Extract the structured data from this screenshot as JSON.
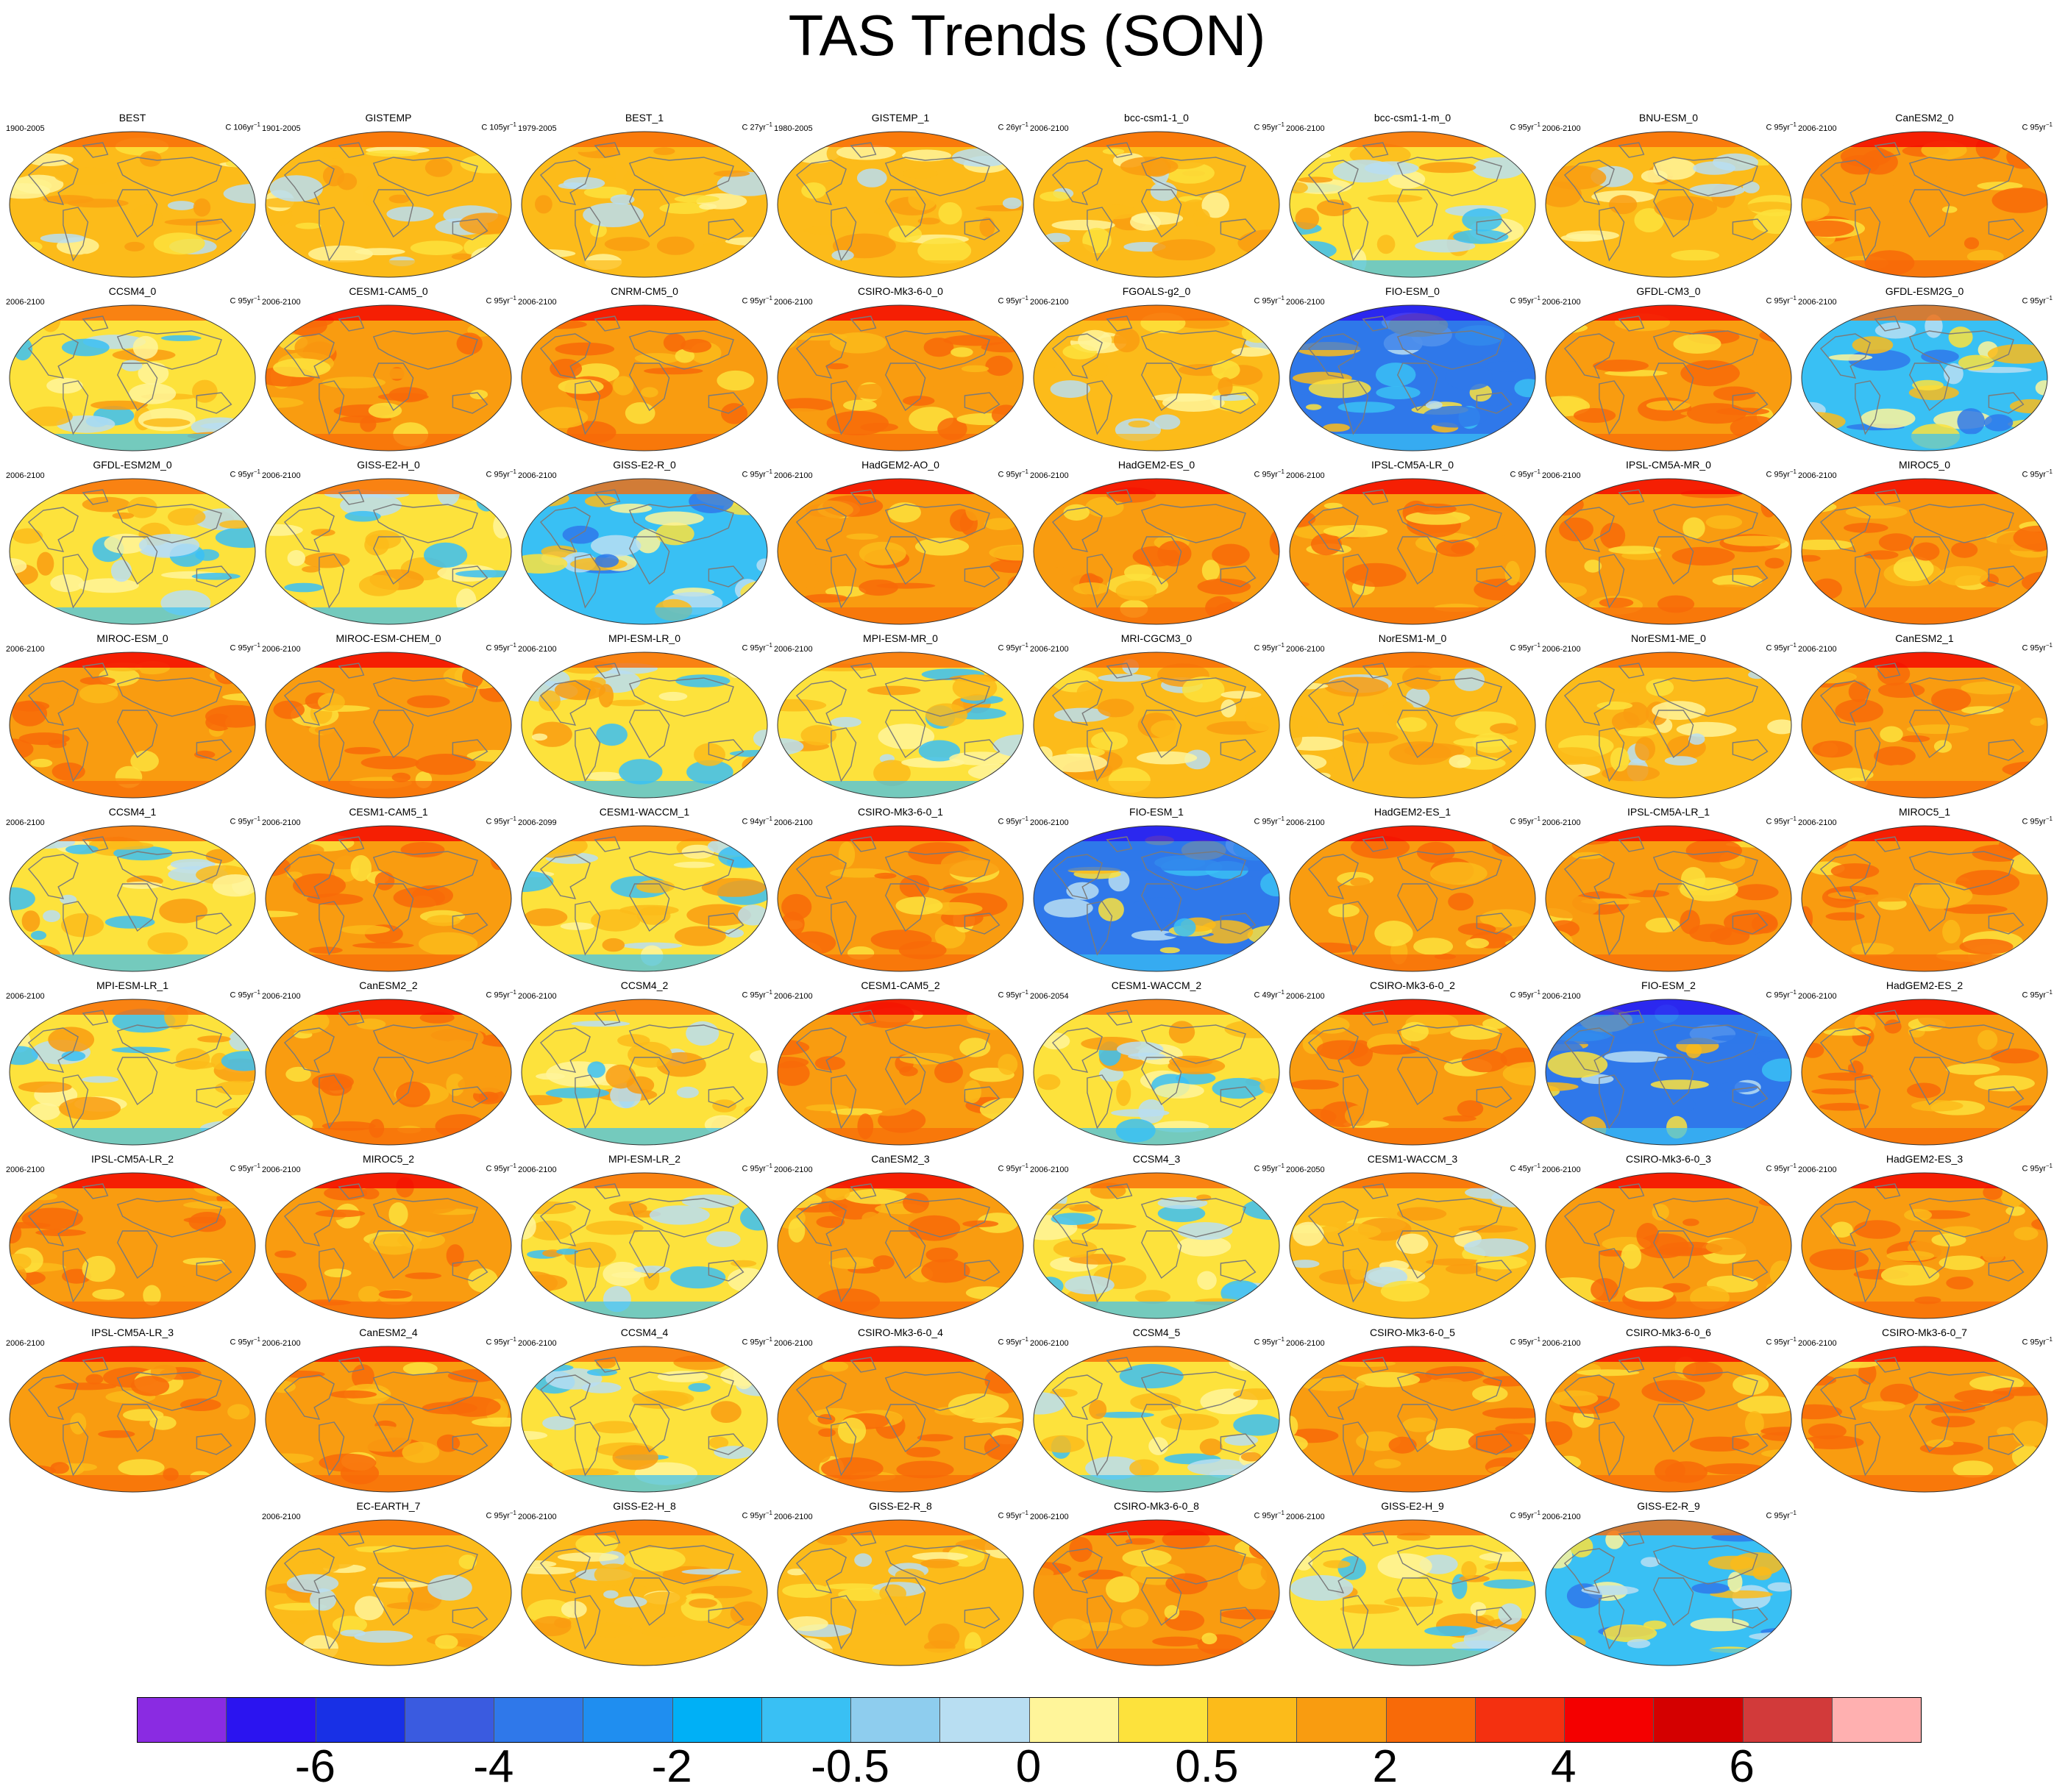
{
  "title": "TAS Trends (SON)",
  "colors": {
    "land_outline": "#7a7a7a",
    "map_border": "#333333",
    "base": "#f7a21a",
    "scale": [
      "#8a2be2",
      "#2b14f0",
      "#1830e6",
      "#3a5be0",
      "#2f78ea",
      "#1f8ef0",
      "#00b0f6",
      "#39c0f4",
      "#8ecdee",
      "#b8def2",
      "#fff59a",
      "#fde23c",
      "#fcbb1a",
      "#f99c10",
      "#f86a08",
      "#f43010",
      "#f40000",
      "#d40000",
      "#d23a3a",
      "#ffb0b0"
    ]
  },
  "colorbar": {
    "labels": [
      "-6",
      "-4",
      "-2",
      "-0.5",
      "0",
      "0.5",
      "2",
      "4",
      "6"
    ]
  },
  "panels": [
    {
      "name": "BEST",
      "period": "1900-2005",
      "unit": "C 106yr",
      "bias": 1
    },
    {
      "name": "GISTEMP",
      "period": "1901-2005",
      "unit": "C 105yr",
      "bias": 1
    },
    {
      "name": "BEST_1",
      "period": "1979-2005",
      "unit": "C 27yr",
      "bias": 1
    },
    {
      "name": "GISTEMP_1",
      "period": "1980-2005",
      "unit": "C 26yr",
      "bias": 1
    },
    {
      "name": "bcc-csm1-1_0",
      "period": "2006-2100",
      "unit": "C 95yr",
      "bias": 1
    },
    {
      "name": "bcc-csm1-1-m_0",
      "period": "2006-2100",
      "unit": "C 95yr",
      "bias": 0
    },
    {
      "name": "BNU-ESM_0",
      "period": "2006-2100",
      "unit": "C 95yr",
      "bias": 1
    },
    {
      "name": "CanESM2_0",
      "period": "2006-2100",
      "unit": "C 95yr",
      "bias": 2
    },
    {
      "name": "CCSM4_0",
      "period": "2006-2100",
      "unit": "C 95yr",
      "bias": 0
    },
    {
      "name": "CESM1-CAM5_0",
      "period": "2006-2100",
      "unit": "C 95yr",
      "bias": 2
    },
    {
      "name": "CNRM-CM5_0",
      "period": "2006-2100",
      "unit": "C 95yr",
      "bias": 2
    },
    {
      "name": "CSIRO-Mk3-6-0_0",
      "period": "2006-2100",
      "unit": "C 95yr",
      "bias": 2
    },
    {
      "name": "FGOALS-g2_0",
      "period": "2006-2100",
      "unit": "C 95yr",
      "bias": 1
    },
    {
      "name": "FIO-ESM_0",
      "period": "2006-2100",
      "unit": "C 95yr",
      "bias": -2
    },
    {
      "name": "GFDL-CM3_0",
      "period": "2006-2100",
      "unit": "C 95yr",
      "bias": 2
    },
    {
      "name": "GFDL-ESM2G_0",
      "period": "2006-2100",
      "unit": "C 95yr",
      "bias": -1
    },
    {
      "name": "GFDL-ESM2M_0",
      "period": "2006-2100",
      "unit": "C 95yr",
      "bias": 0
    },
    {
      "name": "GISS-E2-H_0",
      "period": "2006-2100",
      "unit": "C 95yr",
      "bias": 0
    },
    {
      "name": "GISS-E2-R_0",
      "period": "2006-2100",
      "unit": "C 95yr",
      "bias": -1
    },
    {
      "name": "HadGEM2-AO_0",
      "period": "2006-2100",
      "unit": "C 95yr",
      "bias": 2
    },
    {
      "name": "HadGEM2-ES_0",
      "period": "2006-2100",
      "unit": "C 95yr",
      "bias": 2
    },
    {
      "name": "IPSL-CM5A-LR_0",
      "period": "2006-2100",
      "unit": "C 95yr",
      "bias": 2
    },
    {
      "name": "IPSL-CM5A-MR_0",
      "period": "2006-2100",
      "unit": "C 95yr",
      "bias": 2
    },
    {
      "name": "MIROC5_0",
      "period": "2006-2100",
      "unit": "C 95yr",
      "bias": 2
    },
    {
      "name": "MIROC-ESM_0",
      "period": "2006-2100",
      "unit": "C 95yr",
      "bias": 2
    },
    {
      "name": "MIROC-ESM-CHEM_0",
      "period": "2006-2100",
      "unit": "C 95yr",
      "bias": 2
    },
    {
      "name": "MPI-ESM-LR_0",
      "period": "2006-2100",
      "unit": "C 95yr",
      "bias": 0
    },
    {
      "name": "MPI-ESM-MR_0",
      "period": "2006-2100",
      "unit": "C 95yr",
      "bias": 0
    },
    {
      "name": "MRI-CGCM3_0",
      "period": "2006-2100",
      "unit": "C 95yr",
      "bias": 1
    },
    {
      "name": "NorESM1-M_0",
      "period": "2006-2100",
      "unit": "C 95yr",
      "bias": 1
    },
    {
      "name": "NorESM1-ME_0",
      "period": "2006-2100",
      "unit": "C 95yr",
      "bias": 1
    },
    {
      "name": "CanESM2_1",
      "period": "2006-2100",
      "unit": "C 95yr",
      "bias": 2
    },
    {
      "name": "CCSM4_1",
      "period": "2006-2100",
      "unit": "C 95yr",
      "bias": 0
    },
    {
      "name": "CESM1-CAM5_1",
      "period": "2006-2100",
      "unit": "C 95yr",
      "bias": 2
    },
    {
      "name": "CESM1-WACCM_1",
      "period": "2006-2099",
      "unit": "C 94yr",
      "bias": 0
    },
    {
      "name": "CSIRO-Mk3-6-0_1",
      "period": "2006-2100",
      "unit": "C 95yr",
      "bias": 2
    },
    {
      "name": "FIO-ESM_1",
      "period": "2006-2100",
      "unit": "C 95yr",
      "bias": -2
    },
    {
      "name": "HadGEM2-ES_1",
      "period": "2006-2100",
      "unit": "C 95yr",
      "bias": 2
    },
    {
      "name": "IPSL-CM5A-LR_1",
      "period": "2006-2100",
      "unit": "C 95yr",
      "bias": 2
    },
    {
      "name": "MIROC5_1",
      "period": "2006-2100",
      "unit": "C 95yr",
      "bias": 2
    },
    {
      "name": "MPI-ESM-LR_1",
      "period": "2006-2100",
      "unit": "C 95yr",
      "bias": 0
    },
    {
      "name": "CanESM2_2",
      "period": "2006-2100",
      "unit": "C 95yr",
      "bias": 2
    },
    {
      "name": "CCSM4_2",
      "period": "2006-2100",
      "unit": "C 95yr",
      "bias": 0
    },
    {
      "name": "CESM1-CAM5_2",
      "period": "2006-2100",
      "unit": "C 95yr",
      "bias": 2
    },
    {
      "name": "CESM1-WACCM_2",
      "period": "2006-2054",
      "unit": "C 49yr",
      "bias": 0
    },
    {
      "name": "CSIRO-Mk3-6-0_2",
      "period": "2006-2100",
      "unit": "C 95yr",
      "bias": 2
    },
    {
      "name": "FIO-ESM_2",
      "period": "2006-2100",
      "unit": "C 95yr",
      "bias": -2
    },
    {
      "name": "HadGEM2-ES_2",
      "period": "2006-2100",
      "unit": "C 95yr",
      "bias": 2
    },
    {
      "name": "IPSL-CM5A-LR_2",
      "period": "2006-2100",
      "unit": "C 95yr",
      "bias": 2
    },
    {
      "name": "MIROC5_2",
      "period": "2006-2100",
      "unit": "C 95yr",
      "bias": 2
    },
    {
      "name": "MPI-ESM-LR_2",
      "period": "2006-2100",
      "unit": "C 95yr",
      "bias": 0
    },
    {
      "name": "CanESM2_3",
      "period": "2006-2100",
      "unit": "C 95yr",
      "bias": 2
    },
    {
      "name": "CCSM4_3",
      "period": "2006-2100",
      "unit": "C 95yr",
      "bias": 0
    },
    {
      "name": "CESM1-WACCM_3",
      "period": "2006-2050",
      "unit": "C 45yr",
      "bias": 1
    },
    {
      "name": "CSIRO-Mk3-6-0_3",
      "period": "2006-2100",
      "unit": "C 95yr",
      "bias": 2
    },
    {
      "name": "HadGEM2-ES_3",
      "period": "2006-2100",
      "unit": "C 95yr",
      "bias": 2
    },
    {
      "name": "IPSL-CM5A-LR_3",
      "period": "2006-2100",
      "unit": "C 95yr",
      "bias": 2
    },
    {
      "name": "CanESM2_4",
      "period": "2006-2100",
      "unit": "C 95yr",
      "bias": 2
    },
    {
      "name": "CCSM4_4",
      "period": "2006-2100",
      "unit": "C 95yr",
      "bias": 0
    },
    {
      "name": "CSIRO-Mk3-6-0_4",
      "period": "2006-2100",
      "unit": "C 95yr",
      "bias": 2
    },
    {
      "name": "CCSM4_5",
      "period": "2006-2100",
      "unit": "C 95yr",
      "bias": 0
    },
    {
      "name": "CSIRO-Mk3-6-0_5",
      "period": "2006-2100",
      "unit": "C 95yr",
      "bias": 2
    },
    {
      "name": "CSIRO-Mk3-6-0_6",
      "period": "2006-2100",
      "unit": "C 95yr",
      "bias": 2
    },
    {
      "name": "CSIRO-Mk3-6-0_7",
      "period": "2006-2100",
      "unit": "C 95yr",
      "bias": 2
    },
    {
      "name": "EC-EARTH_7",
      "period": "2006-2100",
      "unit": "C 95yr",
      "bias": 1
    },
    {
      "name": "GISS-E2-H_8",
      "period": "2006-2100",
      "unit": "C 95yr",
      "bias": 1
    },
    {
      "name": "GISS-E2-R_8",
      "period": "2006-2100",
      "unit": "C 95yr",
      "bias": 1
    },
    {
      "name": "CSIRO-Mk3-6-0_8",
      "period": "2006-2100",
      "unit": "C 95yr",
      "bias": 2
    },
    {
      "name": "GISS-E2-H_9",
      "period": "2006-2100",
      "unit": "C 95yr",
      "bias": 0
    },
    {
      "name": "GISS-E2-R_9",
      "period": "2006-2100",
      "unit": "C 95yr",
      "bias": -1
    }
  ]
}
